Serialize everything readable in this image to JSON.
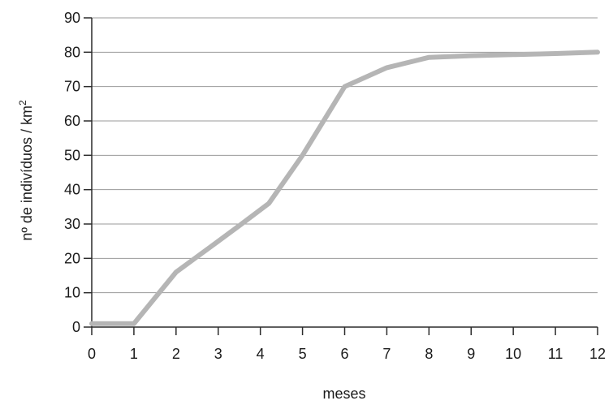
{
  "chart_data": {
    "type": "line",
    "title": "",
    "xlabel": "meses",
    "ylabel_main": "nº de indivíduos / km",
    "ylabel_superscript": "2",
    "xlim": [
      0,
      12
    ],
    "ylim": [
      0,
      90
    ],
    "x_ticks": [
      0,
      1,
      2,
      3,
      4,
      5,
      6,
      7,
      8,
      9,
      10,
      11,
      12
    ],
    "y_ticks": [
      0,
      10,
      20,
      30,
      40,
      50,
      60,
      70,
      80,
      90
    ],
    "grid": "horizontal",
    "legend": "none",
    "series": [
      {
        "color": "#b5b5b5",
        "x": [
          0,
          1,
          2,
          3,
          3.5,
          4.2,
          5,
          6,
          7,
          8,
          9,
          10,
          11,
          12
        ],
        "y": [
          1,
          1,
          16,
          25,
          29.5,
          36,
          50,
          70,
          75.5,
          78.5,
          79,
          79.3,
          79.6,
          80
        ]
      }
    ],
    "colors": {
      "axis": "#2b2b2b",
      "grid": "#9a9a9a",
      "line": "#b5b5b5"
    }
  }
}
